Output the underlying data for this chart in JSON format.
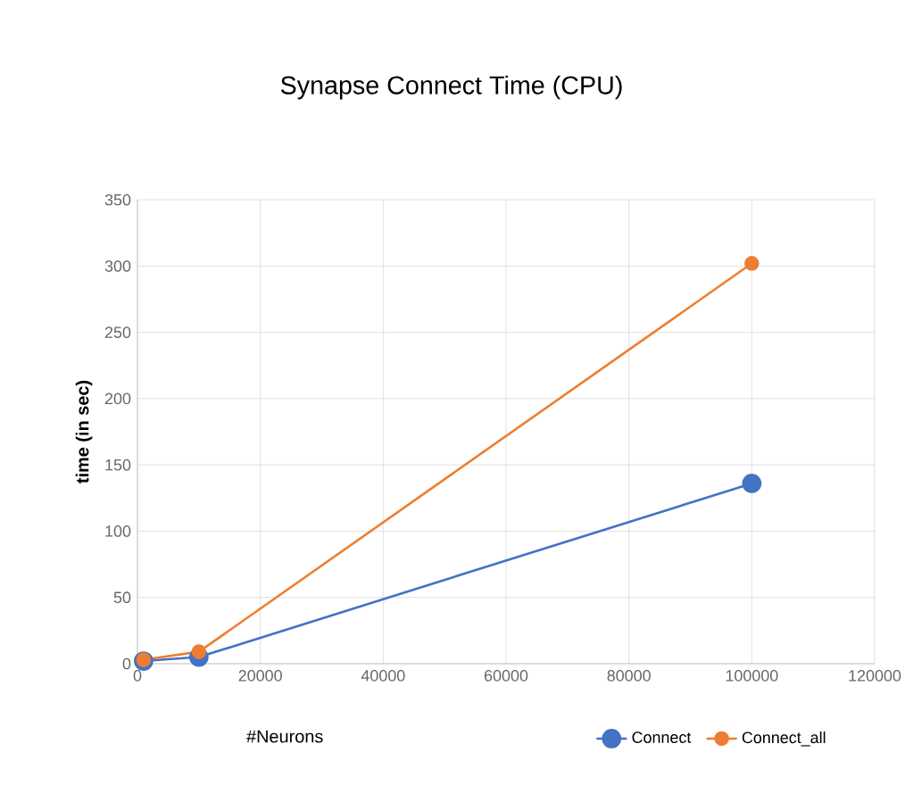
{
  "chart_data": {
    "type": "line",
    "title": "Synapse Connect Time (CPU)",
    "xlabel": "#Neurons",
    "ylabel": "time (in sec)",
    "x": [
      1000,
      10000,
      100000
    ],
    "series": [
      {
        "name": "Connect",
        "color": "#4472c4",
        "values": [
          2,
          5,
          136
        ]
      },
      {
        "name": "Connect_all",
        "color": "#ed7d31",
        "values": [
          3,
          9,
          302
        ]
      }
    ],
    "xlim": [
      0,
      120000
    ],
    "xticks": [
      0,
      20000,
      40000,
      60000,
      80000,
      100000,
      120000
    ],
    "ylim": [
      0,
      350
    ],
    "yticks": [
      0,
      50,
      100,
      150,
      200,
      250,
      300,
      350
    ],
    "grid": true,
    "legend": "bottom",
    "marker": "circle",
    "line_style": "solid"
  }
}
